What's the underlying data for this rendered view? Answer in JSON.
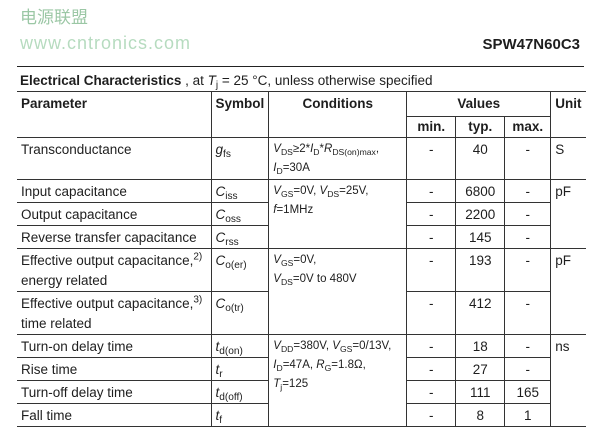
{
  "part_number": "SPW47N60C3",
  "caption": {
    "bold": "Electrical Characteristics",
    "rest": [
      [
        ", at ",
        ""
      ],
      [
        "T",
        "i"
      ],
      [
        "j",
        "s"
      ],
      [
        " = 25 °C, unless otherwise specified",
        ""
      ]
    ]
  },
  "headers": {
    "parameter": "Parameter",
    "symbol": "Symbol",
    "conditions": "Conditions",
    "values": "Values",
    "unit": "Unit",
    "min": "min.",
    "typ": "typ.",
    "max": "max."
  },
  "rows": [
    {
      "param": "Transconductance",
      "sym": [
        [
          "g",
          "i"
        ],
        [
          "fs",
          "s"
        ]
      ],
      "min": "-",
      "typ": "40",
      "max": "-",
      "unit": "S",
      "cond": [
        [
          [
            "V",
            "i"
          ],
          [
            "DS",
            "s"
          ],
          [
            "≥2*",
            ""
          ],
          [
            "I",
            "i"
          ],
          [
            "D",
            "s"
          ],
          [
            "*",
            ""
          ],
          [
            "R",
            "i"
          ],
          [
            "DS(on)max",
            "s"
          ],
          [
            ",",
            ""
          ]
        ],
        [
          [
            "I",
            "i"
          ],
          [
            "D",
            "s"
          ],
          [
            "=30A",
            ""
          ]
        ]
      ]
    },
    {
      "param": "Input capacitance",
      "sym": [
        [
          "C",
          "i"
        ],
        [
          "iss",
          "s"
        ]
      ],
      "min": "-",
      "typ": "6800",
      "max": "-",
      "unit": "pF",
      "cond": [
        [
          [
            "V",
            "i"
          ],
          [
            "GS",
            "s"
          ],
          [
            "=0V, ",
            ""
          ],
          [
            "V",
            "i"
          ],
          [
            "DS",
            "s"
          ],
          [
            "=25V,",
            ""
          ]
        ],
        [
          [
            "f",
            "i"
          ],
          [
            "=1MHz",
            ""
          ]
        ]
      ]
    },
    {
      "param": "Output capacitance",
      "sym": [
        [
          "C",
          "i"
        ],
        [
          "oss",
          "s"
        ]
      ],
      "min": "-",
      "typ": "2200",
      "max": "-"
    },
    {
      "param": "Reverse transfer capacitance",
      "sym": [
        [
          "C",
          "i"
        ],
        [
          "rss",
          "s"
        ]
      ],
      "min": "-",
      "typ": "145",
      "max": "-"
    },
    {
      "param": "Effective output capacitance,",
      "sup": "2)",
      "param2": "energy related",
      "sym": [
        [
          "C",
          "i"
        ],
        [
          "o(er)",
          "s"
        ]
      ],
      "min": "-",
      "typ": "193",
      "max": "-",
      "unit": "pF",
      "cond": [
        [
          [
            "V",
            "i"
          ],
          [
            "GS",
            "s"
          ],
          [
            "=0V,",
            ""
          ]
        ],
        [
          [
            "V",
            "i"
          ],
          [
            "DS",
            "s"
          ],
          [
            "=0V to 480V",
            ""
          ]
        ]
      ]
    },
    {
      "param": "Effective output capacitance,",
      "sup": "3)",
      "param2": "time related",
      "sym": [
        [
          "C",
          "i"
        ],
        [
          "o(tr)",
          "s"
        ]
      ],
      "min": "-",
      "typ": "412",
      "max": "-"
    },
    {
      "param": "Turn-on delay time",
      "sym": [
        [
          "t",
          "i"
        ],
        [
          "d(on)",
          "s"
        ]
      ],
      "min": "-",
      "typ": "18",
      "max": "-",
      "unit": "ns",
      "cond": [
        [
          [
            "V",
            "i"
          ],
          [
            "DD",
            "s"
          ],
          [
            "=380V, ",
            ""
          ],
          [
            "V",
            "i"
          ],
          [
            "GS",
            "s"
          ],
          [
            "=0/13V,",
            ""
          ]
        ],
        [
          [
            "I",
            "i"
          ],
          [
            "D",
            "s"
          ],
          [
            "=47A, ",
            ""
          ],
          [
            "R",
            "i"
          ],
          [
            "G",
            "s"
          ],
          [
            "=1.8Ω,",
            ""
          ]
        ],
        [
          [
            "T",
            "i"
          ],
          [
            "j",
            "s"
          ],
          [
            "=125",
            ""
          ]
        ]
      ]
    },
    {
      "param": "Rise time",
      "sym": [
        [
          "t",
          "i"
        ],
        [
          "r",
          "s"
        ]
      ],
      "min": "-",
      "typ": "27",
      "max": "-"
    },
    {
      "param": "Turn-off delay time",
      "sym": [
        [
          "t",
          "i"
        ],
        [
          "d(off)",
          "s"
        ]
      ],
      "min": "-",
      "typ": "111",
      "max": "165"
    },
    {
      "param": "Fall time",
      "sym": [
        [
          "t",
          "i"
        ],
        [
          "f",
          "s"
        ]
      ],
      "min": "-",
      "typ": "8",
      "max": "1"
    }
  ],
  "watermark": {
    "cn": "电源联盟",
    "url": "www.cntronics.com"
  }
}
